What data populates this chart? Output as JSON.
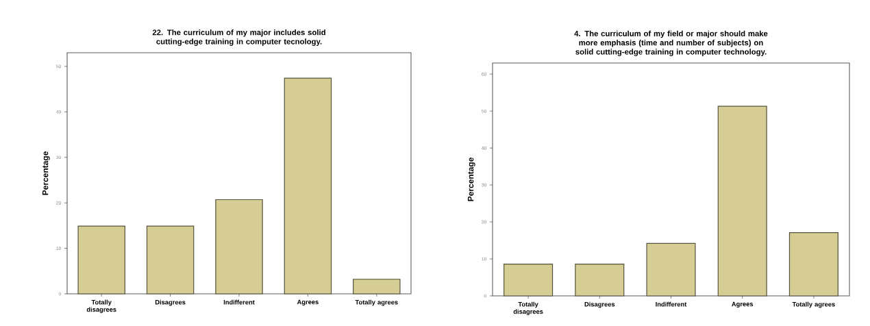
{
  "chart_data": [
    {
      "type": "bar",
      "title": "22. The curriculum of my major includes solid cutting-edge training in computer tecnology.",
      "ylabel": "Percentage",
      "categories": [
        "Totally disagrees",
        "Disagrees",
        "Indifferent",
        "Agrees",
        "Totally agrees"
      ],
      "values": [
        14.9,
        14.9,
        20.7,
        47.4,
        3.2
      ],
      "color": "#d5cd93",
      "ylim": [
        0,
        53
      ],
      "yticks": [
        0,
        10,
        20,
        30,
        40,
        50
      ],
      "grid": false
    },
    {
      "type": "bar",
      "title": "4. The curriculum of my field or major should make more emphasis (time and number of subjects) on solid cutting-edge training in computer technology.",
      "ylabel": "Percentage",
      "categories": [
        "Totally disagrees",
        "Disagrees",
        "Indifferent",
        "Agrees",
        "Totally agrees"
      ],
      "values": [
        8.6,
        8.6,
        14.2,
        51.3,
        17.1
      ],
      "color": "#d5cd93",
      "ylim": [
        0,
        63
      ],
      "yticks": [
        0,
        10,
        20,
        30,
        40,
        50,
        60
      ],
      "grid": false
    }
  ]
}
